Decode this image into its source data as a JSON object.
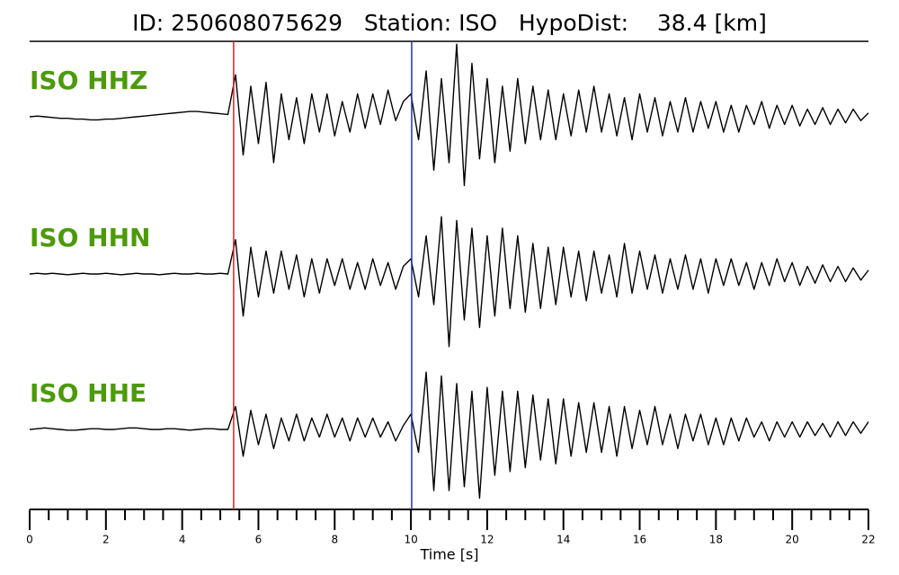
{
  "chart_data": {
    "type": "seismogram",
    "title": "ID: 250608075629   Station: ISO   HypoDist:    38.4 [km]",
    "xlabel": "Time [s]",
    "xlim": [
      0,
      22
    ],
    "xticks": [
      0,
      2,
      4,
      6,
      8,
      10,
      12,
      14,
      16,
      18,
      20,
      22
    ],
    "xminorticks": [
      0.5,
      1,
      1.5,
      2.5,
      3,
      3.5,
      4.5,
      5,
      5.5,
      6.5,
      7,
      7.5,
      8.5,
      9,
      9.5,
      10.5,
      11,
      11.5,
      12.5,
      13,
      13.5,
      14.5,
      15,
      15.5,
      16.5,
      17,
      17.5,
      18.5,
      19,
      19.5,
      20.5,
      21,
      21.5
    ],
    "ylim": [
      -1,
      1
    ],
    "label_color": "#4c9a0a",
    "vlines": [
      {
        "x": 5.35,
        "color": "#e0201a"
      },
      {
        "x": 10.02,
        "color": "#2030d0"
      }
    ],
    "x": [
      0,
      0.2,
      0.4,
      0.6,
      0.8,
      1,
      1.2,
      1.4,
      1.6,
      1.8,
      2,
      2.2,
      2.4,
      2.6,
      2.8,
      3,
      3.2,
      3.4,
      3.6,
      3.8,
      4,
      4.2,
      4.4,
      4.6,
      4.8,
      5,
      5.2,
      5.4,
      5.6,
      5.8,
      6,
      6.2,
      6.4,
      6.6,
      6.8,
      7,
      7.2,
      7.4,
      7.6,
      7.8,
      8,
      8.2,
      8.4,
      8.6,
      8.8,
      9,
      9.2,
      9.4,
      9.6,
      9.8,
      10,
      10.2,
      10.4,
      10.6,
      10.8,
      11,
      11.2,
      11.4,
      11.6,
      11.8,
      12,
      12.2,
      12.4,
      12.6,
      12.8,
      13,
      13.2,
      13.4,
      13.6,
      13.8,
      14,
      14.2,
      14.4,
      14.6,
      14.8,
      15,
      15.2,
      15.4,
      15.6,
      15.8,
      16,
      16.2,
      16.4,
      16.6,
      16.8,
      17,
      17.2,
      17.4,
      17.6,
      17.8,
      18,
      18.2,
      18.4,
      18.6,
      18.8,
      19,
      19.2,
      19.4,
      19.6,
      19.8,
      20,
      20.2,
      20.4,
      20.6,
      20.8,
      21,
      21.2,
      21.4,
      21.6,
      21.8,
      22
    ],
    "series": [
      {
        "name": "ISO HHZ",
        "color": "#000000",
        "values": [
          0,
          0.01,
          0,
          -0.01,
          -0.02,
          -0.02,
          -0.03,
          -0.03,
          -0.04,
          -0.04,
          -0.03,
          -0.03,
          -0.02,
          -0.01,
          0,
          0.01,
          0.02,
          0.03,
          0.04,
          0.05,
          0.06,
          0.07,
          0.07,
          0.06,
          0.05,
          0.04,
          0.03,
          0.55,
          -0.5,
          0.4,
          -0.35,
          0.45,
          -0.6,
          0.3,
          -0.3,
          0.25,
          -0.35,
          0.3,
          -0.2,
          0.3,
          -0.25,
          0.2,
          -0.2,
          0.3,
          -0.15,
          0.3,
          -0.1,
          0.35,
          -0.05,
          0.2,
          0.3,
          -0.3,
          0.6,
          -0.7,
          0.5,
          -0.6,
          0.95,
          -0.9,
          0.7,
          -0.55,
          0.5,
          -0.6,
          0.4,
          -0.45,
          0.5,
          -0.35,
          0.4,
          -0.3,
          0.35,
          -0.3,
          0.3,
          -0.25,
          0.35,
          -0.2,
          0.4,
          -0.2,
          0.3,
          -0.25,
          0.25,
          -0.3,
          0.3,
          -0.2,
          0.25,
          -0.25,
          0.2,
          -0.2,
          0.25,
          -0.2,
          0.2,
          -0.15,
          0.2,
          -0.2,
          0.15,
          -0.2,
          0.15,
          -0.1,
          0.2,
          -0.15,
          0.15,
          -0.1,
          0.15,
          -0.12,
          0.1,
          -0.1,
          0.12,
          -0.1,
          0.1,
          -0.08,
          0.1,
          -0.05,
          0.05
        ]
      },
      {
        "name": "ISO HHN",
        "color": "#000000",
        "values": [
          0,
          0.01,
          0,
          0.01,
          0,
          -0.01,
          0,
          0.01,
          0,
          0,
          0.01,
          0,
          -0.01,
          0,
          0.01,
          0,
          0,
          -0.01,
          0,
          0.01,
          0,
          0,
          0.01,
          0,
          0,
          0.01,
          0,
          0.45,
          -0.55,
          0.35,
          -0.3,
          0.3,
          -0.25,
          0.3,
          -0.2,
          0.25,
          -0.3,
          0.2,
          -0.25,
          0.2,
          -0.15,
          0.2,
          -0.2,
          0.15,
          -0.2,
          0.2,
          -0.15,
          0.15,
          -0.2,
          0.1,
          0.2,
          -0.3,
          0.5,
          -0.4,
          0.75,
          -0.95,
          0.7,
          -0.6,
          0.6,
          -0.7,
          0.5,
          -0.55,
          0.6,
          -0.45,
          0.5,
          -0.5,
          0.4,
          -0.45,
          0.35,
          -0.4,
          0.35,
          -0.3,
          0.3,
          -0.35,
          0.3,
          -0.25,
          0.25,
          -0.3,
          0.4,
          -0.25,
          0.3,
          -0.2,
          0.25,
          -0.25,
          0.2,
          -0.2,
          0.25,
          -0.2,
          0.2,
          -0.25,
          0.2,
          -0.15,
          0.2,
          -0.15,
          0.15,
          -0.2,
          0.15,
          -0.15,
          0.2,
          -0.1,
          0.15,
          -0.15,
          0.1,
          -0.12,
          0.12,
          -0.1,
          0.1,
          -0.1,
          0.08,
          -0.08,
          0.05
        ]
      },
      {
        "name": "ISO HHE",
        "color": "#000000",
        "values": [
          0,
          0.01,
          0.02,
          0.01,
          0,
          -0.01,
          -0.01,
          0,
          0.01,
          0.01,
          0,
          0,
          0.01,
          0.02,
          0.02,
          0.01,
          0,
          0,
          0.01,
          0.01,
          0,
          -0.01,
          0,
          0.01,
          0.01,
          0,
          0,
          0.3,
          -0.35,
          0.25,
          -0.2,
          0.2,
          -0.25,
          0.15,
          -0.15,
          0.2,
          -0.15,
          0.15,
          -0.1,
          0.2,
          -0.1,
          0.15,
          -0.15,
          0.15,
          -0.1,
          0.15,
          -0.1,
          0.1,
          -0.15,
          0.05,
          0.2,
          -0.3,
          0.75,
          -0.8,
          0.7,
          -0.8,
          0.6,
          -0.75,
          0.5,
          -0.9,
          0.55,
          -0.6,
          0.5,
          -0.55,
          0.5,
          -0.5,
          0.45,
          -0.4,
          0.4,
          -0.45,
          0.4,
          -0.35,
          0.35,
          -0.3,
          0.35,
          -0.3,
          0.3,
          -0.35,
          0.3,
          -0.25,
          0.25,
          -0.2,
          0.3,
          -0.2,
          0.2,
          -0.25,
          0.2,
          -0.15,
          0.2,
          -0.2,
          0.15,
          -0.2,
          0.15,
          -0.15,
          0.15,
          -0.1,
          0.1,
          -0.15,
          0.1,
          -0.1,
          0.1,
          -0.1,
          0.1,
          -0.08,
          0.08,
          -0.1,
          0.1,
          -0.08,
          0.1,
          -0.05,
          0.1
        ]
      }
    ]
  }
}
